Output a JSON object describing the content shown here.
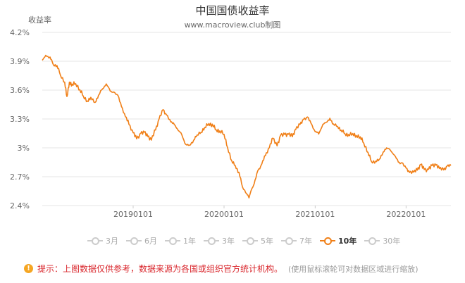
{
  "header": {
    "title": "中国国债收益率",
    "subtitle": "www.macroview.club制图"
  },
  "legend": [
    {
      "label": "3月",
      "active": false
    },
    {
      "label": "6月",
      "active": false
    },
    {
      "label": "1年",
      "active": false
    },
    {
      "label": "3年",
      "active": false
    },
    {
      "label": "5年",
      "active": false
    },
    {
      "label": "7年",
      "active": false
    },
    {
      "label": "10年",
      "active": true
    },
    {
      "label": "30年",
      "active": false
    }
  ],
  "notice": {
    "text": "提示：上图数据仅供参考，数据来源为各国或组织官方统计机构。",
    "sub": "(使用鼠标滚轮可对数据区域进行缩放)"
  },
  "colors": {
    "series": "#f07f17",
    "grid": "#e6e6e6",
    "axis_text": "#666666"
  },
  "chart_data": {
    "type": "line",
    "ylabel": "收益率",
    "yticks": [
      "2.4%",
      "2.7%",
      "3%",
      "3.3%",
      "3.6%",
      "3.9%",
      "4.2%"
    ],
    "ytick_values": [
      2.4,
      2.7,
      3.0,
      3.3,
      3.6,
      3.9,
      4.2
    ],
    "xticks": [
      "20190101",
      "20200101",
      "20210101",
      "20220101"
    ],
    "ylim": [
      2.4,
      4.2
    ],
    "xlim": [
      "2018-01-01",
      "2022-06-30"
    ],
    "grid": true,
    "series": [
      {
        "name": "10年",
        "color": "#f07f17",
        "x": [
          "2018-01-01",
          "2018-01-15",
          "2018-02-01",
          "2018-02-15",
          "2018-03-01",
          "2018-03-15",
          "2018-04-01",
          "2018-04-10",
          "2018-04-20",
          "2018-05-01",
          "2018-05-15",
          "2018-06-01",
          "2018-06-15",
          "2018-07-01",
          "2018-07-15",
          "2018-08-01",
          "2018-08-15",
          "2018-09-01",
          "2018-09-15",
          "2018-10-01",
          "2018-10-15",
          "2018-11-01",
          "2018-11-15",
          "2018-12-01",
          "2018-12-15",
          "2019-01-01",
          "2019-01-15",
          "2019-02-01",
          "2019-02-15",
          "2019-03-01",
          "2019-03-15",
          "2019-04-01",
          "2019-04-15",
          "2019-05-01",
          "2019-05-15",
          "2019-06-01",
          "2019-06-15",
          "2019-07-01",
          "2019-07-15",
          "2019-08-01",
          "2019-08-15",
          "2019-09-01",
          "2019-09-15",
          "2019-10-01",
          "2019-10-15",
          "2019-11-01",
          "2019-11-15",
          "2019-12-01",
          "2019-12-15",
          "2020-01-01",
          "2020-01-15",
          "2020-02-01",
          "2020-02-15",
          "2020-03-01",
          "2020-03-15",
          "2020-04-01",
          "2020-04-10",
          "2020-04-20",
          "2020-05-01",
          "2020-05-15",
          "2020-06-01",
          "2020-06-15",
          "2020-07-01",
          "2020-07-15",
          "2020-08-01",
          "2020-08-15",
          "2020-09-01",
          "2020-09-15",
          "2020-10-01",
          "2020-10-15",
          "2020-11-01",
          "2020-11-15",
          "2020-12-01",
          "2020-12-15",
          "2021-01-01",
          "2021-01-15",
          "2021-02-01",
          "2021-02-15",
          "2021-03-01",
          "2021-03-15",
          "2021-04-01",
          "2021-04-15",
          "2021-05-01",
          "2021-05-15",
          "2021-06-01",
          "2021-06-15",
          "2021-07-01",
          "2021-07-15",
          "2021-08-01",
          "2021-08-15",
          "2021-09-01",
          "2021-09-15",
          "2021-10-01",
          "2021-10-15",
          "2021-11-01",
          "2021-11-15",
          "2021-12-01",
          "2021-12-15",
          "2022-01-01",
          "2022-01-15",
          "2022-02-01",
          "2022-02-15",
          "2022-03-01",
          "2022-03-15",
          "2022-04-01",
          "2022-04-15",
          "2022-05-01",
          "2022-05-15",
          "2022-06-01",
          "2022-06-15",
          "2022-06-30"
        ],
        "y": [
          3.91,
          3.96,
          3.93,
          3.87,
          3.85,
          3.77,
          3.68,
          3.53,
          3.68,
          3.65,
          3.68,
          3.6,
          3.55,
          3.48,
          3.52,
          3.47,
          3.54,
          3.63,
          3.66,
          3.6,
          3.57,
          3.54,
          3.43,
          3.32,
          3.26,
          3.15,
          3.1,
          3.14,
          3.16,
          3.12,
          3.08,
          3.2,
          3.29,
          3.4,
          3.33,
          3.27,
          3.25,
          3.18,
          3.15,
          3.02,
          3.03,
          3.07,
          3.14,
          3.17,
          3.21,
          3.26,
          3.23,
          3.19,
          3.17,
          3.15,
          3.01,
          2.86,
          2.82,
          2.73,
          2.6,
          2.52,
          2.49,
          2.57,
          2.62,
          2.76,
          2.82,
          2.93,
          3.0,
          3.11,
          3.02,
          3.12,
          3.14,
          3.13,
          3.13,
          3.19,
          3.25,
          3.29,
          3.31,
          3.26,
          3.16,
          3.16,
          3.24,
          3.27,
          3.3,
          3.24,
          3.23,
          3.18,
          3.16,
          3.13,
          3.15,
          3.12,
          3.11,
          3.06,
          2.95,
          2.87,
          2.85,
          2.88,
          2.95,
          3.0,
          2.98,
          2.92,
          2.86,
          2.83,
          2.79,
          2.74,
          2.75,
          2.78,
          2.82,
          2.78,
          2.76,
          2.82,
          2.82,
          2.79,
          2.78,
          2.8,
          2.82
        ]
      }
    ]
  }
}
